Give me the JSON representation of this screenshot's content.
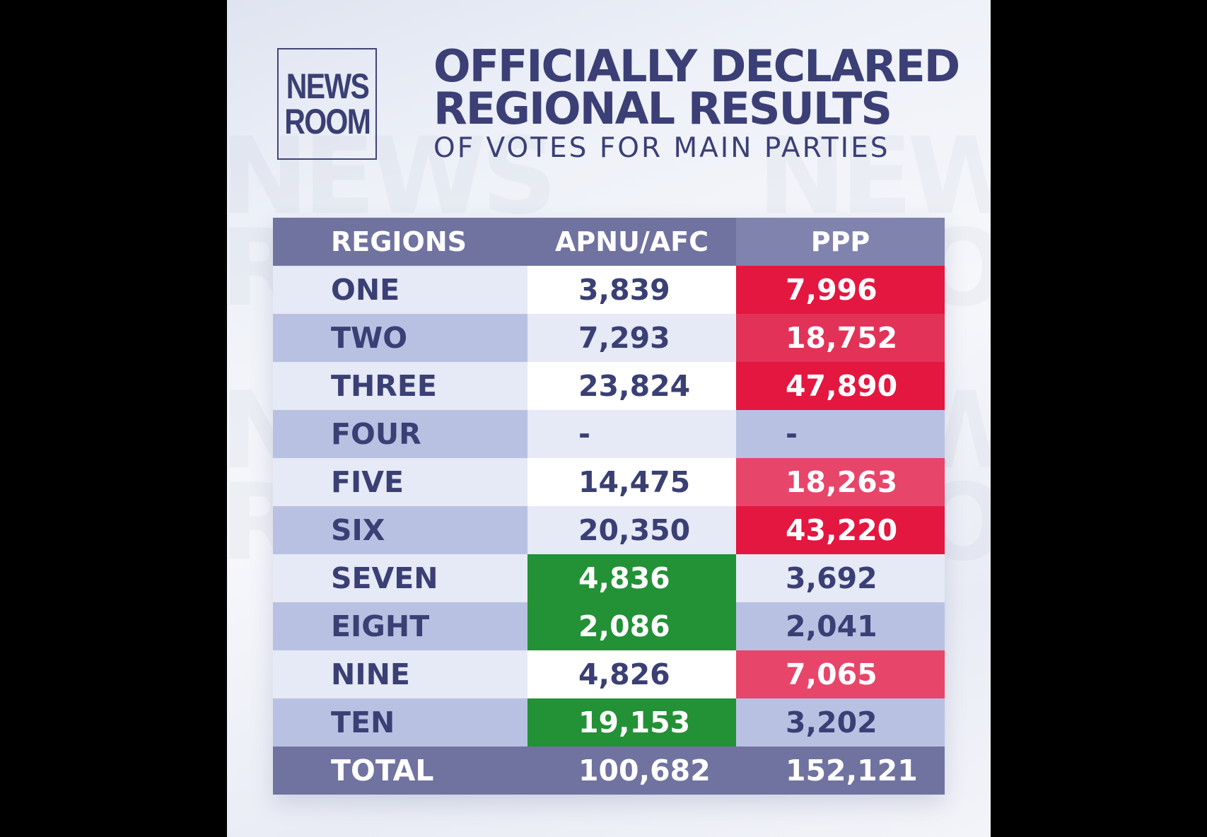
{
  "logo": {
    "line1": "NEWS",
    "line2": "ROOM"
  },
  "title": {
    "line1": "OFFICIALLY DECLARED",
    "line2": "REGIONAL RESULTS",
    "line3": "OF VOTES FOR MAIN PARTIES"
  },
  "table": {
    "headers": [
      "REGIONS",
      "APNU/AFC",
      "PPP"
    ],
    "rows": [
      {
        "region": "ONE",
        "apnu": "3,839",
        "ppp": "7,996",
        "winner": "ppp"
      },
      {
        "region": "TWO",
        "apnu": "7,293",
        "ppp": "18,752",
        "winner": "ppp"
      },
      {
        "region": "THREE",
        "apnu": "23,824",
        "ppp": "47,890",
        "winner": "ppp"
      },
      {
        "region": "FOUR",
        "apnu": "-",
        "ppp": "-",
        "winner": "none"
      },
      {
        "region": "FIVE",
        "apnu": "14,475",
        "ppp": "18,263",
        "winner": "ppp"
      },
      {
        "region": "SIX",
        "apnu": "20,350",
        "ppp": "43,220",
        "winner": "ppp"
      },
      {
        "region": "SEVEN",
        "apnu": "4,836",
        "ppp": "3,692",
        "winner": "apnu"
      },
      {
        "region": "EIGHT",
        "apnu": "2,086",
        "ppp": "2,041",
        "winner": "apnu"
      },
      {
        "region": "NINE",
        "apnu": "4,826",
        "ppp": "7,065",
        "winner": "ppp"
      },
      {
        "region": "TEN",
        "apnu": "19,153",
        "ppp": "3,202",
        "winner": "apnu"
      }
    ],
    "total": {
      "label": "TOTAL",
      "apnu": "100,682",
      "ppp": "152,121"
    }
  },
  "colors": {
    "navy": "#3b3f76",
    "header": "#7073a0",
    "ppp_win": "#e3173f",
    "apnu_win": "#239136"
  }
}
